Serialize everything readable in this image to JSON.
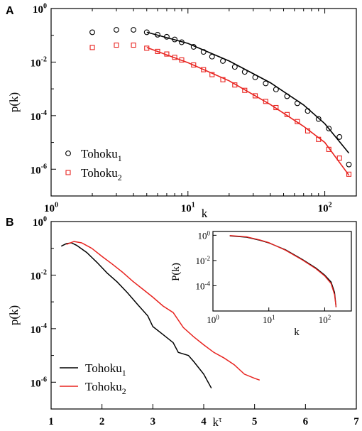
{
  "colors": {
    "series1": "#000000",
    "series2": "#e8231f"
  },
  "chart_data": [
    {
      "panel": "A",
      "type": "scatter",
      "xlabel": "k",
      "ylabel": "p(k)",
      "xscale": "log",
      "yscale": "log",
      "xlim": [
        1,
        170
      ],
      "ylim": [
        1e-07,
        1
      ],
      "x_ticks": [
        1,
        10,
        100
      ],
      "x_tick_labels": [
        {
          "base": "10",
          "exp": "0"
        },
        {
          "base": "10",
          "exp": "1"
        },
        {
          "base": "10",
          "exp": "2"
        }
      ],
      "y_ticks": [
        1,
        0.01,
        0.0001,
        1e-06
      ],
      "y_tick_labels": [
        {
          "base": "10",
          "exp": "0"
        },
        {
          "base": "10",
          "exp": "-2"
        },
        {
          "base": "10",
          "exp": "-4"
        },
        {
          "base": "10",
          "exp": "-6"
        }
      ],
      "legend_position": "bottom-left",
      "series": [
        {
          "label": {
            "base": "Tohoku",
            "sub": "1"
          },
          "marker": "circle",
          "color": "#000000",
          "points": [
            [
              2,
              0.13
            ],
            [
              3,
              0.16
            ],
            [
              4,
              0.16
            ],
            [
              5,
              0.13
            ],
            [
              6,
              0.105
            ],
            [
              7,
              0.088
            ],
            [
              8,
              0.07
            ],
            [
              9,
              0.055
            ],
            [
              11,
              0.037
            ],
            [
              13,
              0.024
            ],
            [
              15,
              0.016
            ],
            [
              18,
              0.011
            ],
            [
              22,
              0.0066
            ],
            [
              26,
              0.0043
            ],
            [
              31,
              0.0027
            ],
            [
              37,
              0.0016
            ],
            [
              44,
              0.00095
            ],
            [
              53,
              0.00053
            ],
            [
              63,
              0.00029
            ],
            [
              75,
              0.00015
            ],
            [
              90,
              7.5e-05
            ],
            [
              107,
              3.3e-05
            ],
            [
              128,
              1.6e-05
            ],
            [
              150,
              1.5e-06
            ]
          ],
          "fit": [
            [
              5,
              0.13
            ],
            [
              10,
              0.05
            ],
            [
              20,
              0.011
            ],
            [
              40,
              0.0017
            ],
            [
              70,
              0.00025
            ],
            [
              100,
              5e-05
            ],
            [
              150,
              4e-06
            ]
          ]
        },
        {
          "label": {
            "base": "Tohoku",
            "sub": "2"
          },
          "marker": "square",
          "color": "#e8231f",
          "points": [
            [
              2,
              0.035
            ],
            [
              3,
              0.043
            ],
            [
              4,
              0.043
            ],
            [
              5,
              0.033
            ],
            [
              6,
              0.025
            ],
            [
              7,
              0.02
            ],
            [
              8,
              0.015
            ],
            [
              9,
              0.012
            ],
            [
              11,
              0.0078
            ],
            [
              13,
              0.0052
            ],
            [
              15,
              0.0034
            ],
            [
              18,
              0.0022
            ],
            [
              22,
              0.0014
            ],
            [
              26,
              0.00088
            ],
            [
              31,
              0.00055
            ],
            [
              37,
              0.00034
            ],
            [
              44,
              0.0002
            ],
            [
              53,
              0.00011
            ],
            [
              63,
              6e-05
            ],
            [
              75,
              2.7e-05
            ],
            [
              90,
              1.3e-05
            ],
            [
              107,
              5.5e-06
            ],
            [
              128,
              2.6e-06
            ],
            [
              150,
              6.5e-07
            ]
          ],
          "fit": [
            [
              5,
              0.035
            ],
            [
              10,
              0.0095
            ],
            [
              20,
              0.002
            ],
            [
              40,
              0.00026
            ],
            [
              70,
              4e-05
            ],
            [
              100,
              1e-05
            ],
            [
              150,
              6e-07
            ]
          ]
        }
      ]
    },
    {
      "panel": "B",
      "type": "line",
      "xlabel": {
        "base": "k",
        "sup": "τ"
      },
      "ylabel": "p(k)",
      "xscale": "linear",
      "yscale": "log",
      "xlim": [
        1,
        7
      ],
      "ylim": [
        1e-07,
        1
      ],
      "x_ticks": [
        1,
        2,
        3,
        4,
        5,
        6,
        7
      ],
      "x_tick_labels": [
        "1",
        "2",
        "3",
        "4",
        "5",
        "6",
        "7"
      ],
      "y_ticks": [
        1,
        0.01,
        0.0001,
        1e-06
      ],
      "y_tick_labels": [
        {
          "base": "10",
          "exp": "0"
        },
        {
          "base": "10",
          "exp": "-2"
        },
        {
          "base": "10",
          "exp": "-4"
        },
        {
          "base": "10",
          "exp": "-6"
        }
      ],
      "legend_position": "bottom-left",
      "series": [
        {
          "label": {
            "base": "Tohoku",
            "sub": "1"
          },
          "color": "#000000",
          "points": [
            [
              1.2,
              0.12
            ],
            [
              1.3,
              0.15
            ],
            [
              1.4,
              0.16
            ],
            [
              1.5,
              0.13
            ],
            [
              1.7,
              0.07
            ],
            [
              1.9,
              0.03
            ],
            [
              2.1,
              0.012
            ],
            [
              2.3,
              0.0055
            ],
            [
              2.5,
              0.0022
            ],
            [
              2.7,
              0.0008
            ],
            [
              2.9,
              0.0003
            ],
            [
              3.0,
              0.00012
            ],
            [
              3.2,
              6e-05
            ],
            [
              3.4,
              3e-05
            ],
            [
              3.5,
              1.3e-05
            ],
            [
              3.7,
              1e-05
            ],
            [
              3.8,
              6e-06
            ],
            [
              4.0,
              2e-06
            ],
            [
              4.15,
              6e-07
            ]
          ]
        },
        {
          "label": {
            "base": "Tohoku",
            "sub": "2"
          },
          "color": "#e8231f",
          "points": [
            [
              1.3,
              0.14
            ],
            [
              1.45,
              0.18
            ],
            [
              1.6,
              0.16
            ],
            [
              1.8,
              0.1
            ],
            [
              2.0,
              0.05
            ],
            [
              2.2,
              0.026
            ],
            [
              2.4,
              0.013
            ],
            [
              2.6,
              0.006
            ],
            [
              2.8,
              0.003
            ],
            [
              3.0,
              0.0015
            ],
            [
              3.2,
              0.0007
            ],
            [
              3.4,
              0.0004
            ],
            [
              3.6,
              0.00011
            ],
            [
              3.8,
              5e-05
            ],
            [
              4.0,
              2.5e-05
            ],
            [
              4.2,
              1.3e-05
            ],
            [
              4.4,
              8e-06
            ],
            [
              4.6,
              4.5e-06
            ],
            [
              4.8,
              2e-06
            ],
            [
              5.0,
              1.4e-06
            ],
            [
              5.1,
              1.2e-06
            ]
          ]
        }
      ],
      "inset": {
        "xlabel": "k",
        "ylabel": "P(k)",
        "xscale": "log",
        "yscale": "log",
        "xlim": [
          1,
          300
        ],
        "ylim": [
          1e-06,
          2
        ],
        "x_ticks": [
          1,
          10,
          100
        ],
        "x_tick_labels": [
          {
            "base": "10",
            "exp": "0"
          },
          {
            "base": "10",
            "exp": "1"
          },
          {
            "base": "10",
            "exp": "2"
          }
        ],
        "y_ticks": [
          1,
          0.01,
          0.0001
        ],
        "y_tick_labels": [
          {
            "base": "10",
            "exp": "0"
          },
          {
            "base": "10",
            "exp": "-2"
          },
          {
            "base": "10",
            "exp": "-4"
          }
        ],
        "series": [
          {
            "color": "#000000",
            "points": [
              [
                2,
                0.9
              ],
              [
                4,
                0.7
              ],
              [
                7,
                0.4
              ],
              [
                10,
                0.25
              ],
              [
                20,
                0.07
              ],
              [
                40,
                0.012
              ],
              [
                70,
                0.0025
              ],
              [
                100,
                0.0007
              ],
              [
                130,
                0.0002
              ],
              [
                150,
                3e-05
              ],
              [
                160,
                2e-06
              ]
            ]
          },
          {
            "color": "#e8231f",
            "points": [
              [
                2,
                0.95
              ],
              [
                4,
                0.75
              ],
              [
                7,
                0.42
              ],
              [
                10,
                0.26
              ],
              [
                20,
                0.065
              ],
              [
                40,
                0.011
              ],
              [
                70,
                0.0022
              ],
              [
                100,
                0.0006
              ],
              [
                130,
                0.00015
              ],
              [
                150,
                2e-05
              ],
              [
                160,
                2e-06
              ]
            ]
          }
        ]
      }
    }
  ]
}
